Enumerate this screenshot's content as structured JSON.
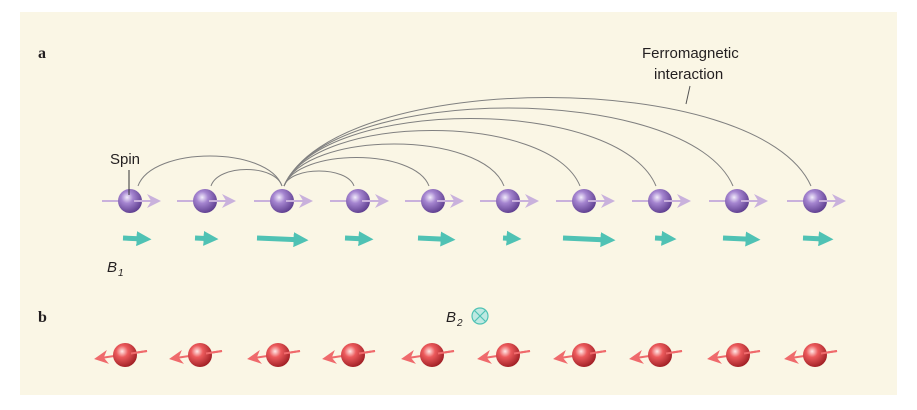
{
  "panel_a": {
    "label": "a",
    "interaction_label": [
      "Ferromagnetic",
      "interaction"
    ],
    "spin_label": "Spin",
    "field": {
      "symbol": "B",
      "subscript": "1"
    }
  },
  "panel_b": {
    "label": "b",
    "field": {
      "symbol": "B",
      "subscript": "2"
    }
  }
}
